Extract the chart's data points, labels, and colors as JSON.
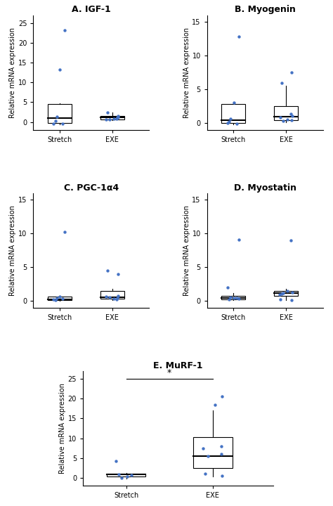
{
  "panels": [
    {
      "title": "A. IGF-1",
      "ylim": [
        -2,
        27
      ],
      "yticks": [
        0,
        5,
        10,
        15,
        20,
        25
      ],
      "stretch_points": [
        0.3,
        -0.4,
        1.4,
        13.2,
        -0.5,
        23.2
      ],
      "stretch_box": {
        "q1": -0.3,
        "median": 1.0,
        "q3": 4.5,
        "whislo": -0.6,
        "whishi": 4.8
      },
      "exe_points": [
        1.1,
        0.7,
        1.5,
        2.4,
        0.7,
        0.8,
        1.2,
        0.9
      ],
      "exe_box": {
        "q1": 0.6,
        "median": 1.1,
        "q3": 1.6,
        "whislo": 0.5,
        "whishi": 2.5
      },
      "significance": null
    },
    {
      "title": "B. Myogenin",
      "ylim": [
        -1,
        16
      ],
      "yticks": [
        0,
        5,
        10,
        15
      ],
      "stretch_points": [
        0.2,
        -0.1,
        0.7,
        3.0,
        0.0,
        12.8
      ],
      "stretch_box": {
        "q1": 0.0,
        "median": 0.5,
        "q3": 2.8,
        "whislo": -0.2,
        "whishi": 3.2
      },
      "exe_points": [
        0.4,
        0.9,
        1.1,
        6.0,
        0.3,
        0.6,
        7.5,
        1.4
      ],
      "exe_box": {
        "q1": 0.4,
        "median": 1.0,
        "q3": 2.5,
        "whislo": 0.1,
        "whishi": 5.5
      },
      "significance": null
    },
    {
      "title": "C. PGC-1α4",
      "ylim": [
        -1,
        16
      ],
      "yticks": [
        0,
        5,
        10,
        15
      ],
      "stretch_points": [
        0.1,
        0.4,
        0.5,
        0.7,
        0.3,
        10.2
      ],
      "stretch_box": {
        "q1": 0.1,
        "median": 0.3,
        "q3": 0.7,
        "whislo": 0.0,
        "whishi": 0.8
      },
      "exe_points": [
        0.5,
        0.7,
        4.0,
        4.5,
        0.6,
        0.4,
        0.8,
        0.3
      ],
      "exe_box": {
        "q1": 0.4,
        "median": 0.6,
        "q3": 1.5,
        "whislo": 0.2,
        "whishi": 1.8
      },
      "significance": null
    },
    {
      "title": "D. Myostatin",
      "ylim": [
        -1,
        16
      ],
      "yticks": [
        0,
        5,
        10,
        15
      ],
      "stretch_points": [
        0.3,
        0.5,
        0.6,
        0.5,
        2.0,
        9.1,
        0.4
      ],
      "stretch_box": {
        "q1": 0.3,
        "median": 0.5,
        "q3": 0.8,
        "whislo": 0.1,
        "whishi": 1.2
      },
      "exe_points": [
        0.3,
        1.3,
        1.1,
        1.2,
        1.5,
        0.2,
        9.0,
        1.0
      ],
      "exe_box": {
        "q1": 0.8,
        "median": 1.2,
        "q3": 1.5,
        "whislo": 0.1,
        "whishi": 1.8
      },
      "significance": null
    },
    {
      "title": "E. MuRF-1",
      "ylim": [
        -2,
        27
      ],
      "yticks": [
        0,
        5,
        10,
        15,
        20,
        25
      ],
      "stretch_points": [
        0.8,
        0.7,
        -0.1,
        0.4,
        4.2
      ],
      "stretch_box": {
        "q1": 0.4,
        "median": 0.8,
        "q3": 1.0,
        "whislo": -0.2,
        "whishi": 1.2
      },
      "exe_points": [
        6.0,
        8.0,
        7.5,
        0.5,
        1.0,
        5.5,
        18.5,
        20.5
      ],
      "exe_box": {
        "q1": 2.5,
        "median": 5.5,
        "q3": 10.2,
        "whislo": 0.3,
        "whishi": 17.0
      },
      "significance": "*"
    }
  ],
  "dot_color": "#4472C4",
  "box_facecolor": "white",
  "box_edgecolor": "black",
  "median_color": "black",
  "whisker_color": "black",
  "ylabel": "Relative mRNA expression",
  "xlabel_stretch": "Stretch",
  "xlabel_exe": "EXE",
  "bg_color": "white",
  "title_fontsize": 9,
  "tick_fontsize": 7,
  "label_fontsize": 7
}
